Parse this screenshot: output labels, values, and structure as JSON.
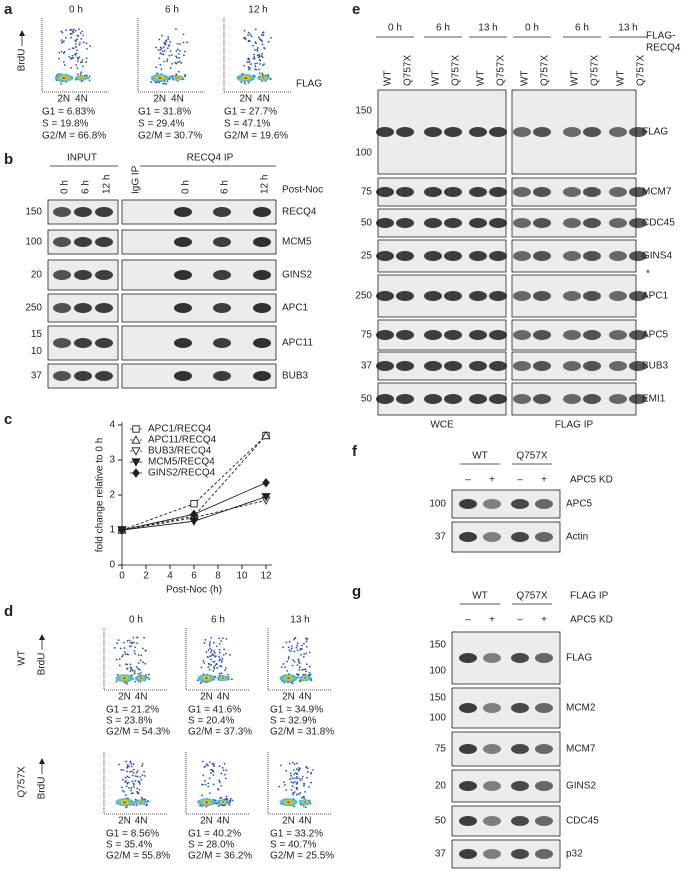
{
  "panel_labels": [
    "a",
    "b",
    "c",
    "d",
    "e",
    "f",
    "g"
  ],
  "a": {
    "y_label": "BrdU",
    "x_label": "FLAG",
    "dna_ticks": [
      "2N",
      "4N"
    ],
    "plots": [
      {
        "time": "0 h",
        "stats": [
          {
            "text": "G1 = 6.83%",
            "color": "#231f20"
          },
          {
            "text": "S = 19.8%",
            "color": "#231f20"
          },
          {
            "text": "G2/M = 66.8%",
            "color": "#e8322b"
          }
        ]
      },
      {
        "time": "6 h",
        "stats": [
          {
            "text": "G1 = 31.8%",
            "color": "#e8322b"
          },
          {
            "text": "S = 29.4%",
            "color": "#231f20"
          },
          {
            "text": "G2/M = 30.7%",
            "color": "#231f20"
          }
        ]
      },
      {
        "time": "12 h",
        "stats": [
          {
            "text": "G1 = 27.7%",
            "color": "#231f20"
          },
          {
            "text": "S = 47.1%",
            "color": "#e8322b"
          },
          {
            "text": "G2/M = 19.6%",
            "color": "#231f20"
          }
        ]
      }
    ]
  },
  "b": {
    "input_header": "INPUT",
    "ip_header": "RECQ4 IP",
    "condition": "Post-Noc",
    "lanes": [
      "0 h",
      "6 h",
      "12 h",
      "IgG IP",
      "0 h",
      "6 h",
      "12 h"
    ],
    "rows": [
      {
        "protein": "RECQ4",
        "markers": [
          "150"
        ]
      },
      {
        "protein": "MCM5",
        "markers": [
          "100"
        ]
      },
      {
        "protein": "GINS2",
        "markers": [
          "20"
        ]
      },
      {
        "protein": "APC1",
        "markers": [
          "250"
        ]
      },
      {
        "protein": "APC11",
        "markers": [
          "15",
          "10"
        ]
      },
      {
        "protein": "BUB3",
        "markers": [
          "37"
        ]
      }
    ]
  },
  "chart_data": {
    "type": "line",
    "x_label": "Post-Noc (h)",
    "y_label": "fold change relative to 0 h",
    "x": [
      0,
      6,
      12
    ],
    "xlim": [
      0,
      12
    ],
    "xticks": [
      0,
      2,
      4,
      6,
      8,
      10,
      12
    ],
    "ylim": [
      0,
      4
    ],
    "yticks": [
      0,
      1,
      2,
      3,
      4
    ],
    "legend": "upper left",
    "series": [
      {
        "name": "APC1/RECQ4",
        "color": "#231f20",
        "marker": "square",
        "filled": false,
        "dashed": true,
        "values": [
          1,
          1.75,
          3.7
        ]
      },
      {
        "name": "APC11/RECQ4",
        "color": "#231f20",
        "marker": "triangle-up",
        "filled": false,
        "dashed": true,
        "values": [
          1,
          1.4,
          3.7
        ]
      },
      {
        "name": "BUB3/RECQ4",
        "color": "#231f20",
        "marker": "triangle-down",
        "filled": false,
        "dashed": true,
        "values": [
          1,
          1.35,
          1.85
        ]
      },
      {
        "name": "MCM5/RECQ4",
        "color": "#231f20",
        "marker": "triangle-down",
        "filled": true,
        "dashed": false,
        "values": [
          1,
          1.25,
          1.95
        ]
      },
      {
        "name": "GINS2/RECQ4",
        "color": "#231f20",
        "marker": "diamond",
        "filled": true,
        "dashed": false,
        "values": [
          1,
          1.45,
          2.35
        ]
      }
    ]
  },
  "d": {
    "y_label": "BrdU",
    "dna_ticks": [
      "2N",
      "4N"
    ],
    "times": [
      "0 h",
      "6 h",
      "13 h"
    ],
    "rows": [
      {
        "label": "WT",
        "plots": [
          [
            {
              "text": "G1 = 21.2%",
              "color": "#231f20"
            },
            {
              "text": "S = 23.8%",
              "color": "#231f20"
            },
            {
              "text": "G2/M = 54.3%",
              "color": "#e8322b"
            }
          ],
          [
            {
              "text": "G1 = 41.6%",
              "color": "#e8322b"
            },
            {
              "text": "S = 20.4%",
              "color": "#231f20"
            },
            {
              "text": "G2/M = 37.3%",
              "color": "#231f20"
            }
          ],
          [
            {
              "text": "G1 = 34.9%",
              "color": "#e8322b"
            },
            {
              "text": "S = 32.9%",
              "color": "#231f20"
            },
            {
              "text": "G2/M = 31.8%",
              "color": "#231f20"
            }
          ]
        ]
      },
      {
        "label": "Q757X",
        "plots": [
          [
            {
              "text": "G1 = 8.56%",
              "color": "#231f20"
            },
            {
              "text": "S = 35.4%",
              "color": "#231f20"
            },
            {
              "text": "G2/M = 55.8%",
              "color": "#e8322b"
            }
          ],
          [
            {
              "text": "G1 = 40.2%",
              "color": "#e8322b"
            },
            {
              "text": "S = 28.0%",
              "color": "#231f20"
            },
            {
              "text": "G2/M = 36.2%",
              "color": "#231f20"
            }
          ],
          [
            {
              "text": "G1 = 33.2%",
              "color": "#231f20"
            },
            {
              "text": "S = 40.7%",
              "color": "#e8322b"
            },
            {
              "text": "G2/M = 25.5%",
              "color": "#231f20"
            }
          ]
        ]
      }
    ]
  },
  "e": {
    "times": [
      "0 h",
      "6 h",
      "13 h"
    ],
    "lanes": [
      "WT",
      "Q757X"
    ],
    "construct": [
      "FLAG-",
      "RECQ4"
    ],
    "sections": [
      "WCE",
      "FLAG IP"
    ],
    "asterisk": "*",
    "rows": [
      {
        "protein": "FLAG",
        "markers": [
          "150",
          "100"
        ]
      },
      {
        "protein": "MCM7",
        "markers": [
          "75"
        ]
      },
      {
        "protein": "CDC45",
        "markers": [
          "50"
        ]
      },
      {
        "protein": "GINS4",
        "markers": [
          "25"
        ]
      },
      {
        "protein": "APC1",
        "markers": [
          "250"
        ]
      },
      {
        "protein": "APC5",
        "markers": [
          "75"
        ]
      },
      {
        "protein": "BUB3",
        "markers": [
          "37"
        ]
      },
      {
        "protein": "EMI1",
        "markers": [
          "50"
        ]
      }
    ]
  },
  "f": {
    "groups": [
      "WT",
      "Q757X"
    ],
    "signs": [
      "–",
      "+"
    ],
    "condition": "APC5 KD",
    "rows": [
      {
        "protein": "APC5",
        "markers": [
          "100"
        ]
      },
      {
        "protein": "Actin",
        "markers": [
          "37"
        ]
      }
    ]
  },
  "g": {
    "groups": [
      "WT",
      "Q757X"
    ],
    "ip": "FLAG IP",
    "signs": [
      "–",
      "+"
    ],
    "condition": "APC5 KD",
    "rows": [
      {
        "protein": "FLAG",
        "markers": [
          "150",
          "100"
        ]
      },
      {
        "protein": "MCM2",
        "markers": [
          "150",
          "100"
        ]
      },
      {
        "protein": "MCM7",
        "markers": [
          "75"
        ]
      },
      {
        "protein": "GINS2",
        "markers": [
          "20"
        ]
      },
      {
        "protein": "CDC45",
        "markers": [
          "50"
        ]
      },
      {
        "protein": "p32",
        "markers": [
          "37"
        ]
      }
    ]
  }
}
